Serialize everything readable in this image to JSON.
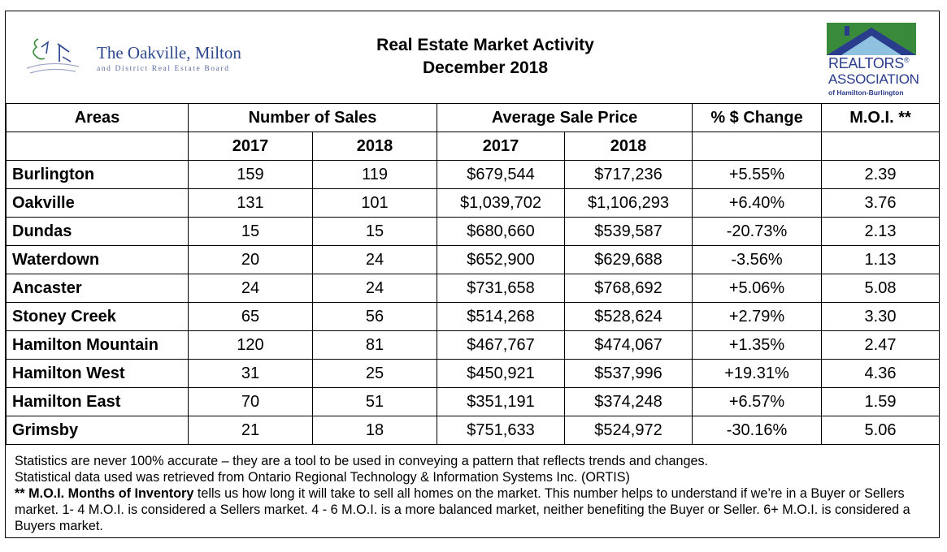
{
  "header": {
    "board_name": "The Oakville, Milton",
    "board_sub": "and District Real Estate Board",
    "title_line1": "Real Estate Market Activity",
    "title_line2": "December 2018",
    "realtors_line1": "REALTORS",
    "realtors_reg": "®",
    "realtors_line2": "ASSOCIATION",
    "realtors_line3": "of Hamilton-Burlington",
    "brand_green": "#3a8a3c",
    "brand_blue": "#2a3c8c"
  },
  "table": {
    "headers": {
      "areas": "Areas",
      "sales": "Number of Sales",
      "price": "Average Sale Price",
      "change": "% $ Change",
      "moi": "M.O.I. **"
    },
    "subheaders": {
      "sales_2017": "2017",
      "sales_2018": "2018",
      "price_2017": "2017",
      "price_2018": "2018"
    },
    "rows": [
      {
        "area": "Burlington",
        "sales_2017": "159",
        "sales_2018": "119",
        "price_2017": "$679,544",
        "price_2018": "$717,236",
        "change": "+5.55%",
        "moi": "2.39"
      },
      {
        "area": "Oakville",
        "sales_2017": "131",
        "sales_2018": "101",
        "price_2017": "$1,039,702",
        "price_2018": "$1,106,293",
        "change": "+6.40%",
        "moi": "3.76"
      },
      {
        "area": "Dundas",
        "sales_2017": "15",
        "sales_2018": "15",
        "price_2017": "$680,660",
        "price_2018": "$539,587",
        "change": "-20.73%",
        "moi": "2.13"
      },
      {
        "area": "Waterdown",
        "sales_2017": "20",
        "sales_2018": "24",
        "price_2017": "$652,900",
        "price_2018": "$629,688",
        "change": "-3.56%",
        "moi": "1.13"
      },
      {
        "area": "Ancaster",
        "sales_2017": "24",
        "sales_2018": "24",
        "price_2017": "$731,658",
        "price_2018": "$768,692",
        "change": "+5.06%",
        "moi": "5.08"
      },
      {
        "area": "Stoney Creek",
        "sales_2017": "65",
        "sales_2018": "56",
        "price_2017": "$514,268",
        "price_2018": "$528,624",
        "change": "+2.79%",
        "moi": "3.30"
      },
      {
        "area": "Hamilton Mountain",
        "sales_2017": "120",
        "sales_2018": "81",
        "price_2017": "$467,767",
        "price_2018": "$474,067",
        "change": "+1.35%",
        "moi": "2.47"
      },
      {
        "area": "Hamilton West",
        "sales_2017": "31",
        "sales_2018": "25",
        "price_2017": "$450,921",
        "price_2018": "$537,996",
        "change": "+19.31%",
        "moi": "4.36"
      },
      {
        "area": "Hamilton East",
        "sales_2017": "70",
        "sales_2018": "51",
        "price_2017": "$351,191",
        "price_2018": "$374,248",
        "change": "+6.57%",
        "moi": "1.59"
      },
      {
        "area": "Grimsby",
        "sales_2017": "21",
        "sales_2018": "18",
        "price_2017": "$751,633",
        "price_2018": "$524,972",
        "change": "-30.16%",
        "moi": "5.06"
      }
    ]
  },
  "notes": {
    "line1": "Statistics are never 100% accurate – they are a tool to be used in conveying a pattern that reflects trends and changes.",
    "line2": "Statistical data used was retrieved from Ontario Regional Technology & Information Systems Inc. (ORTIS)",
    "moi_bold": "** M.O.I. Months of Inventory",
    "moi_text": " tells us how long it will take to sell all homes on the market. This number helps to understand if we’re in a Buyer or Sellers market. 1- 4 M.O.I. is considered a Sellers market. 4 - 6 M.O.I. is a more balanced market, neither benefiting the Buyer or Seller. 6+ M.O.I. is considered a Buyers market."
  }
}
